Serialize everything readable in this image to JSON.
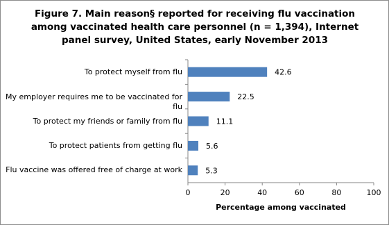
{
  "chart_data": {
    "type": "bar",
    "orientation": "horizontal",
    "title": "Figure 7. Main reason§ reported for receiving flu vaccination among vaccinated health care personnel (n = 1,394), Internet panel survey, United States, early November 2013",
    "categories": [
      "To protect myself from flu",
      "My employer requires me to be vaccinated for flu",
      "To protect my friends or family from flu",
      "To protect patients from getting flu",
      "Flu vaccine was offered free of charge at work"
    ],
    "values": [
      42.6,
      22.5,
      11.1,
      5.6,
      5.3
    ],
    "color": "#4f81bd",
    "xlabel": "Percentage among vaccinated",
    "xlim": [
      0,
      100
    ],
    "xticks": [
      0,
      20,
      40,
      60,
      80,
      100
    ],
    "grid": false
  }
}
